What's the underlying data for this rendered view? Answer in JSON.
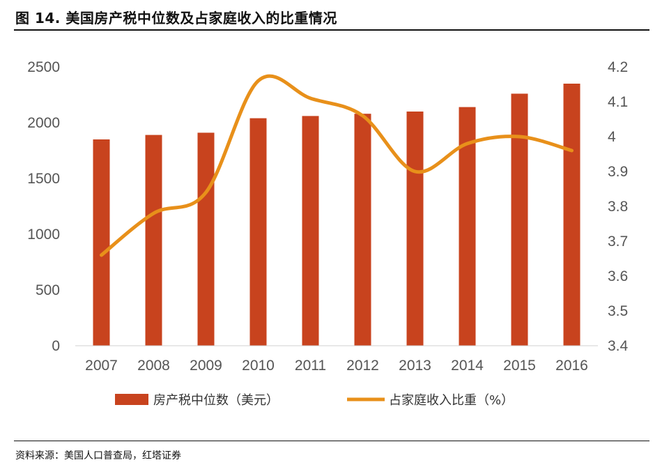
{
  "title": "图 14. 美国房产税中位数及占家庭收入的比重情况",
  "source": "资料来源：美国人口普查局，红塔证券",
  "chart_data": {
    "type": "bar",
    "title": "图 14. 美国房产税中位数及占家庭收入的比重情况",
    "categories": [
      "2007",
      "2008",
      "2009",
      "2010",
      "2011",
      "2012",
      "2013",
      "2014",
      "2015",
      "2016"
    ],
    "series": [
      {
        "name": "房产税中位数（美元）",
        "type": "bar",
        "axis": "left",
        "color": "#C8431E",
        "values": [
          1850,
          1890,
          1910,
          2040,
          2060,
          2080,
          2100,
          2140,
          2260,
          2350
        ]
      },
      {
        "name": "占家庭收入比重（%）",
        "type": "line",
        "axis": "right",
        "color": "#E8901A",
        "values": [
          3.66,
          3.78,
          3.84,
          4.16,
          4.11,
          4.06,
          3.9,
          3.98,
          4.0,
          3.96
        ]
      }
    ],
    "left_axis": {
      "ylim": [
        0,
        2500
      ],
      "ticks": [
        "0",
        "500",
        "1000",
        "1500",
        "2000",
        "2500"
      ]
    },
    "right_axis": {
      "ylim": [
        3.4,
        4.2
      ],
      "ticks": [
        "3.4",
        "3.5",
        "3.6",
        "3.7",
        "3.8",
        "3.9",
        "4",
        "4.1",
        "4.2"
      ]
    },
    "grid": false,
    "legend": "bottom"
  }
}
